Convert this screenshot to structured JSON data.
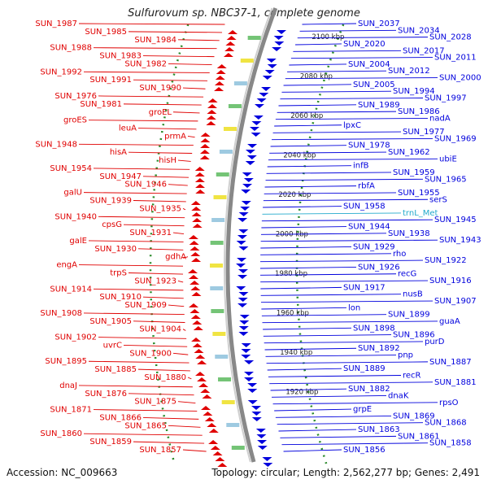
{
  "title": "Sulfurovum sp. NBC37-1, complete genome",
  "accession": "Accession: NC_009663",
  "summary": "Topology: circular; Length: 2,562,277 bp; Genes: 2,491",
  "colors": {
    "reverse_strand": "#e00000",
    "forward_strand": "#0000dd",
    "rna": "#22aacc",
    "backbone": "#888888",
    "tick_dots": "#2a8a2a"
  },
  "kbp_marks": [
    "2100 kbp",
    "2080 kbp",
    "2060 kbp",
    "2040 kbp",
    "2020 kbp",
    "2000 kbp",
    "1980 kbp",
    "1960 kbp",
    "1940 kbp",
    "1920 kbp"
  ],
  "left_labels": [
    "SUN_1987",
    "SUN_1985",
    "SUN_1984",
    "SUN_1988",
    "SUN_1983",
    "SUN_1982",
    "SUN_1992",
    "SUN_1991",
    "SUN_1990",
    "SUN_1976",
    "SUN_1981",
    "groEL",
    "groES",
    "leuA",
    "prmA",
    "SUN_1948",
    "hisA",
    "hisH",
    "SUN_1954",
    "SUN_1947",
    "SUN_1946",
    "galU",
    "SUN_1939",
    "SUN_1935",
    "SUN_1940",
    "cpsG",
    "SUN_1931",
    "galE",
    "SUN_1930",
    "gdhA",
    "engA",
    "trpS",
    "SUN_1923",
    "SUN_1914",
    "SUN_1910",
    "SUN_1909",
    "SUN_1908",
    "SUN_1905",
    "SUN_1904",
    "SUN_1902",
    "uvrC",
    "SUN_1900",
    "SUN_1895",
    "SUN_1885",
    "SUN_1880",
    "dnaJ",
    "SUN_1876",
    "SUN_1875",
    "SUN_1871",
    "SUN_1866",
    "SUN_1865",
    "SUN_1860",
    "SUN_1859",
    "SUN_1857"
  ],
  "right_labels": [
    "SUN_2037",
    "SUN_2034",
    "SUN_2028",
    "SUN_2020",
    "SUN_2017",
    "SUN_2011",
    "SUN_2004",
    "SUN_2012",
    "SUN_2000",
    "SUN_2005",
    "SUN_1994",
    "SUN_1997",
    "SUN_1989",
    "SUN_1986",
    "nadA",
    "lpxC",
    "SUN_1977",
    "SUN_1969",
    "SUN_1978",
    "SUN_1962",
    "ubiE",
    "infB",
    "SUN_1959",
    "SUN_1965",
    "rbfA",
    "SUN_1955",
    "serS",
    "SUN_1958",
    "trnL_Met",
    "SUN_1945",
    "SUN_1944",
    "SUN_1938",
    "SUN_1943",
    "SUN_1929",
    "rho",
    "SUN_1922",
    "SUN_1926",
    "recG",
    "SUN_1916",
    "SUN_1917",
    "nusB",
    "SUN_1907",
    "lon",
    "SUN_1899",
    "guaA",
    "SUN_1898",
    "SUN_1896",
    "purD",
    "SUN_1892",
    "pnp",
    "SUN_1887",
    "SUN_1889",
    "recR",
    "SUN_1881",
    "SUN_1882",
    "dnaK",
    "rpsO",
    "grpE",
    "SUN_1869",
    "SUN_1868",
    "SUN_1863",
    "SUN_1861",
    "SUN_1858",
    "SUN_1856"
  ]
}
